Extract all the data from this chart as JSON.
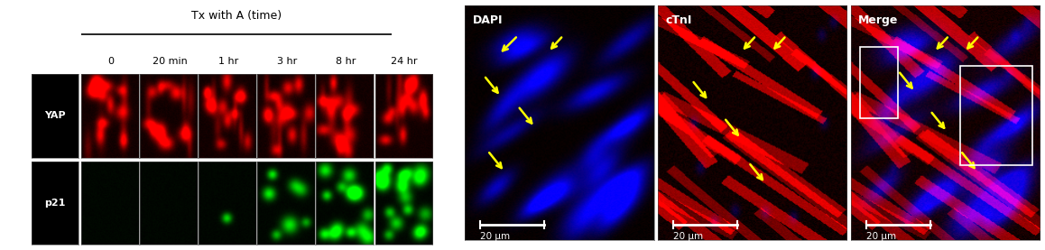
{
  "figure_width": 11.58,
  "figure_height": 2.77,
  "dpi": 100,
  "bg_color": "#ffffff",
  "left_panel": {
    "title": "Tx with A (time)",
    "time_labels": [
      "0",
      "20 min",
      "1 hr",
      "3 hr",
      "8 hr",
      "24 hr"
    ],
    "row_labels": [
      "YAP",
      "p21"
    ]
  },
  "right_panel": {
    "panel_labels": [
      "DAPI",
      "cTnI",
      "Merge"
    ],
    "scale_bar_text": "20 μm"
  }
}
